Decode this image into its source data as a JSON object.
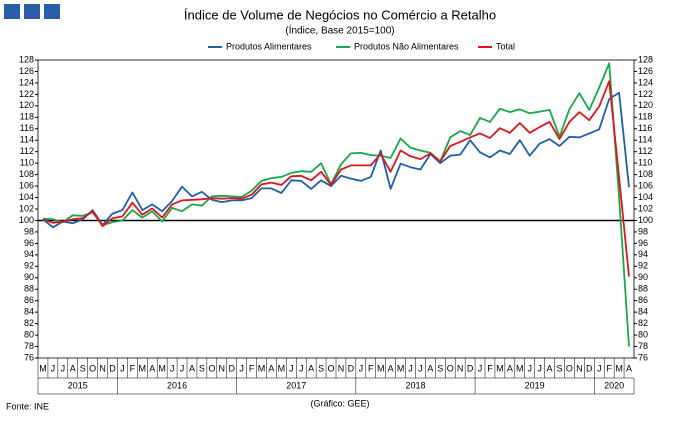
{
  "chart_data": {
    "type": "line",
    "title": "Índice de Volume de Negócios no Comércio a Retalho",
    "subtitle": "(Índice, Base 2015=100)",
    "source": "Fonte: INE",
    "credit": "(Gráfico: GEE)",
    "categories": [
      "M",
      "J",
      "J",
      "A",
      "S",
      "O",
      "N",
      "D",
      "J",
      "F",
      "M",
      "A",
      "M",
      "J",
      "J",
      "A",
      "S",
      "O",
      "N",
      "D",
      "J",
      "F",
      "M",
      "A",
      "M",
      "J",
      "J",
      "A",
      "S",
      "O",
      "N",
      "D",
      "J",
      "F",
      "M",
      "A",
      "M",
      "J",
      "J",
      "A",
      "S",
      "O",
      "N",
      "D",
      "J",
      "F",
      "M",
      "A",
      "M",
      "J",
      "J",
      "A",
      "S",
      "O",
      "N",
      "D",
      "J",
      "F",
      "M",
      "A"
    ],
    "years": [
      "2015",
      "2016",
      "2017",
      "2018",
      "2019",
      "2020"
    ],
    "series": [
      {
        "name": "Produtos Alimentares",
        "color": "#1f5fad",
        "values": [
          100.2,
          98.8,
          99.8,
          99.5,
          100.2,
          101.8,
          99.2,
          101.2,
          101.8,
          104.9,
          101.8,
          102.8,
          101.6,
          103.4,
          105.9,
          104.2,
          105.0,
          103.6,
          103.2,
          103.5,
          103.5,
          103.9,
          105.6,
          105.6,
          104.8,
          107.0,
          106.9,
          105.5,
          107.0,
          106.0,
          107.8,
          107.3,
          106.9,
          107.6,
          112.2,
          105.5,
          109.9,
          109.3,
          108.9,
          111.6,
          110.0,
          111.3,
          111.5,
          114.0,
          111.9,
          111.0,
          112.2,
          111.6,
          114.0,
          111.3,
          113.4,
          114.2,
          113.0,
          114.6,
          114.5,
          115.2,
          115.9,
          121.2,
          122.3,
          105.8
        ]
      },
      {
        "name": "Produtos Não Alimentares",
        "color": "#1aa64a",
        "values": [
          100.3,
          100.2,
          99.7,
          100.9,
          100.8,
          101.4,
          99.2,
          99.7,
          100.0,
          101.8,
          100.5,
          101.6,
          99.8,
          102.2,
          101.6,
          102.8,
          102.6,
          104.2,
          104.3,
          104.2,
          104.1,
          105.2,
          106.9,
          107.4,
          107.6,
          108.3,
          108.6,
          108.5,
          110.0,
          106.3,
          109.8,
          111.7,
          111.8,
          111.4,
          111.3,
          110.9,
          114.3,
          112.7,
          112.2,
          111.8,
          110.3,
          114.5,
          115.6,
          114.9,
          117.9,
          117.2,
          119.5,
          118.9,
          119.4,
          118.7,
          119.0,
          119.3,
          114.6,
          119.4,
          122.2,
          119.3,
          123.2,
          127.4,
          104.0,
          78.0
        ]
      },
      {
        "name": "Total",
        "color": "#e0141c",
        "values": [
          100.2,
          99.6,
          99.8,
          100.2,
          100.4,
          101.6,
          99.0,
          100.4,
          100.7,
          103.1,
          101.0,
          102.1,
          100.5,
          102.8,
          103.5,
          103.6,
          103.7,
          103.9,
          103.8,
          103.9,
          103.8,
          104.5,
          106.3,
          106.6,
          106.2,
          107.7,
          107.8,
          107.0,
          108.5,
          106.2,
          108.9,
          109.6,
          109.6,
          109.6,
          111.6,
          108.5,
          112.2,
          111.2,
          110.7,
          111.7,
          110.3,
          113.0,
          113.7,
          114.5,
          115.2,
          114.4,
          116.1,
          115.3,
          117.0,
          115.3,
          116.3,
          117.2,
          114.2,
          117.2,
          118.9,
          117.5,
          119.9,
          124.3,
          107.5,
          90.2
        ]
      }
    ],
    "reference_line": 100,
    "ylim": [
      76,
      128
    ],
    "yticks": [
      76,
      78,
      80,
      82,
      84,
      86,
      88,
      90,
      92,
      94,
      96,
      98,
      100,
      102,
      104,
      106,
      108,
      110,
      112,
      114,
      116,
      118,
      120,
      122,
      124,
      126,
      128
    ],
    "grid": false,
    "legend": "top"
  }
}
